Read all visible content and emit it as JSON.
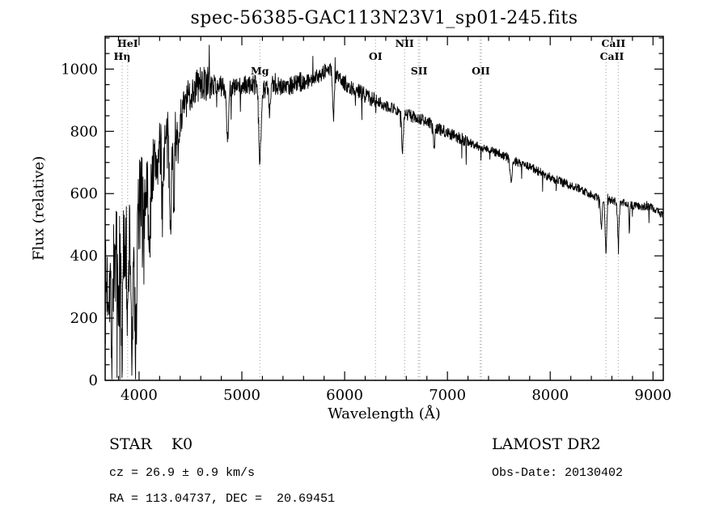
{
  "annotations": {
    "star": "STAR    K0",
    "survey": "LAMOST DR2",
    "cz": "cz = 26.9 ± 0.9 km/s",
    "obs_date": "Obs-Date: 20130402",
    "radec": "RA = 113.04737, DEC =  20.69451"
  },
  "chart_data": {
    "type": "line",
    "title": "spec-56385-GAC113N23V1_sp01-245.fits",
    "xlabel": "Wavelength (Å)",
    "ylabel": "Flux (relative)",
    "xlim": [
      3670,
      9100
    ],
    "ylim": [
      0,
      1105
    ],
    "grid": false,
    "x_major_ticks": [
      4000,
      5000,
      6000,
      7000,
      8000,
      9000
    ],
    "x_major_labels": [
      "4000",
      "5000",
      "6000",
      "7000",
      "8000",
      "9000"
    ],
    "x_minor_step": 200,
    "y_major_ticks": [
      0,
      200,
      400,
      600,
      800,
      1000
    ],
    "y_major_labels": [
      "0",
      "200",
      "400",
      "600",
      "800",
      "1000"
    ],
    "y_minor_step": 50,
    "spectral_lines": [
      {
        "label": "HeI",
        "lines": [
          3889
        ],
        "row": 0
      },
      {
        "label": "Hη",
        "lines": [
          3835
        ],
        "row": 1
      },
      {
        "label": "Mg",
        "lines": [
          5175
        ],
        "row": 2
      },
      {
        "label": "OI",
        "lines": [
          6300
        ],
        "row": 1
      },
      {
        "label": "NII",
        "lines": [
          6583
        ],
        "row": 0
      },
      {
        "label": "SII",
        "lines": [
          6717,
          6731
        ],
        "row": 2,
        "label_at": 6724
      },
      {
        "label": "OII",
        "lines": [
          7319,
          7330
        ],
        "row": 2,
        "label_at": 7325
      },
      {
        "label": "CaII",
        "lines": [
          8662
        ],
        "row": 0,
        "label_at": 8615
      },
      {
        "label": "CaII",
        "lines": [
          8542
        ],
        "row": 1,
        "label_at": 8600
      }
    ],
    "envelope": [
      [
        3670,
        280
      ],
      [
        3700,
        320
      ],
      [
        3740,
        360
      ],
      [
        3780,
        390
      ],
      [
        3820,
        410
      ],
      [
        3860,
        440
      ],
      [
        3900,
        470
      ],
      [
        3940,
        500
      ],
      [
        3980,
        530
      ],
      [
        4020,
        570
      ],
      [
        4060,
        615
      ],
      [
        4100,
        655
      ],
      [
        4140,
        685
      ],
      [
        4180,
        710
      ],
      [
        4220,
        735
      ],
      [
        4260,
        755
      ],
      [
        4300,
        775
      ],
      [
        4340,
        805
      ],
      [
        4380,
        835
      ],
      [
        4420,
        865
      ],
      [
        4460,
        895
      ],
      [
        4500,
        920
      ],
      [
        4540,
        940
      ],
      [
        4580,
        950
      ],
      [
        4620,
        955
      ],
      [
        4660,
        950
      ],
      [
        4700,
        948
      ],
      [
        4740,
        950
      ],
      [
        4780,
        948
      ],
      [
        4820,
        942
      ],
      [
        4860,
        935
      ],
      [
        4900,
        942
      ],
      [
        4940,
        940
      ],
      [
        4980,
        942
      ],
      [
        5020,
        945
      ],
      [
        5060,
        948
      ],
      [
        5100,
        950
      ],
      [
        5140,
        948
      ],
      [
        5180,
        942
      ],
      [
        5220,
        938
      ],
      [
        5260,
        942
      ],
      [
        5300,
        948
      ],
      [
        5340,
        950
      ],
      [
        5380,
        948
      ],
      [
        5420,
        945
      ],
      [
        5460,
        948
      ],
      [
        5500,
        952
      ],
      [
        5540,
        956
      ],
      [
        5580,
        958
      ],
      [
        5620,
        960
      ],
      [
        5660,
        965
      ],
      [
        5700,
        972
      ],
      [
        5740,
        980
      ],
      [
        5780,
        988
      ],
      [
        5820,
        995
      ],
      [
        5860,
        1000
      ],
      [
        5900,
        985
      ],
      [
        5940,
        972
      ],
      [
        5980,
        960
      ],
      [
        6020,
        950
      ],
      [
        6060,
        942
      ],
      [
        6100,
        934
      ],
      [
        6140,
        927
      ],
      [
        6180,
        920
      ],
      [
        6220,
        913
      ],
      [
        6260,
        906
      ],
      [
        6300,
        900
      ],
      [
        6340,
        893
      ],
      [
        6380,
        887
      ],
      [
        6420,
        882
      ],
      [
        6460,
        876
      ],
      [
        6500,
        870
      ],
      [
        6540,
        864
      ],
      [
        6580,
        858
      ],
      [
        6620,
        853
      ],
      [
        6660,
        848
      ],
      [
        6700,
        843
      ],
      [
        6740,
        839
      ],
      [
        6780,
        834
      ],
      [
        6820,
        828
      ],
      [
        6860,
        820
      ],
      [
        6900,
        810
      ],
      [
        6940,
        804
      ],
      [
        6980,
        799
      ],
      [
        7020,
        794
      ],
      [
        7060,
        788
      ],
      [
        7100,
        782
      ],
      [
        7140,
        776
      ],
      [
        7180,
        770
      ],
      [
        7220,
        764
      ],
      [
        7260,
        758
      ],
      [
        7300,
        752
      ],
      [
        7340,
        747
      ],
      [
        7380,
        743
      ],
      [
        7420,
        739
      ],
      [
        7460,
        734
      ],
      [
        7500,
        729
      ],
      [
        7540,
        723
      ],
      [
        7580,
        716
      ],
      [
        7620,
        709
      ],
      [
        7660,
        704
      ],
      [
        7700,
        699
      ],
      [
        7740,
        694
      ],
      [
        7780,
        689
      ],
      [
        7820,
        683
      ],
      [
        7860,
        676
      ],
      [
        7900,
        669
      ],
      [
        7940,
        662
      ],
      [
        7980,
        655
      ],
      [
        8020,
        649
      ],
      [
        8060,
        644
      ],
      [
        8100,
        639
      ],
      [
        8140,
        634
      ],
      [
        8180,
        629
      ],
      [
        8220,
        624
      ],
      [
        8260,
        619
      ],
      [
        8300,
        613
      ],
      [
        8340,
        606
      ],
      [
        8380,
        600
      ],
      [
        8420,
        594
      ],
      [
        8460,
        589
      ],
      [
        8500,
        585
      ],
      [
        8540,
        582
      ],
      [
        8580,
        579
      ],
      [
        8620,
        576
      ],
      [
        8660,
        573
      ],
      [
        8700,
        570
      ],
      [
        8740,
        567
      ],
      [
        8780,
        564
      ],
      [
        8820,
        561
      ],
      [
        8860,
        559
      ],
      [
        8900,
        559
      ],
      [
        8940,
        558
      ],
      [
        8980,
        556
      ],
      [
        9020,
        550
      ],
      [
        9060,
        540
      ],
      [
        9100,
        528
      ]
    ],
    "absorption_lines": [
      [
        3735,
        240,
        7
      ],
      [
        3798,
        200,
        6
      ],
      [
        3835,
        300,
        7
      ],
      [
        3889,
        320,
        7
      ],
      [
        3933,
        430,
        9
      ],
      [
        3968,
        430,
        9
      ],
      [
        4045,
        150,
        6
      ],
      [
        4101,
        260,
        9
      ],
      [
        4227,
        170,
        7
      ],
      [
        4305,
        210,
        11
      ],
      [
        4340,
        190,
        9
      ],
      [
        4383,
        130,
        7
      ],
      [
        4861,
        160,
        9
      ],
      [
        5175,
        240,
        11
      ],
      [
        5270,
        90,
        8
      ],
      [
        5892,
        140,
        8
      ],
      [
        6563,
        125,
        8
      ],
      [
        6870,
        60,
        9
      ],
      [
        7620,
        70,
        11
      ],
      [
        8498,
        100,
        7
      ],
      [
        8542,
        165,
        8
      ],
      [
        8662,
        125,
        8
      ],
      [
        8770,
        95,
        4
      ]
    ],
    "noise": {
      "regions": [
        {
          "from": 3670,
          "to": 4050,
          "amp": 170
        },
        {
          "from": 4050,
          "to": 4350,
          "amp": 110
        },
        {
          "from": 4350,
          "to": 4700,
          "amp": 60
        },
        {
          "from": 4700,
          "to": 5600,
          "amp": 33
        },
        {
          "from": 5600,
          "to": 6300,
          "amp": 26
        },
        {
          "from": 6300,
          "to": 7200,
          "amp": 20
        },
        {
          "from": 7200,
          "to": 8200,
          "amp": 15
        },
        {
          "from": 8200,
          "to": 9100,
          "amp": 13
        }
      ],
      "spike_probability": 0.02,
      "spike_scale": 3,
      "spike_up_fraction": 0.3
    }
  }
}
